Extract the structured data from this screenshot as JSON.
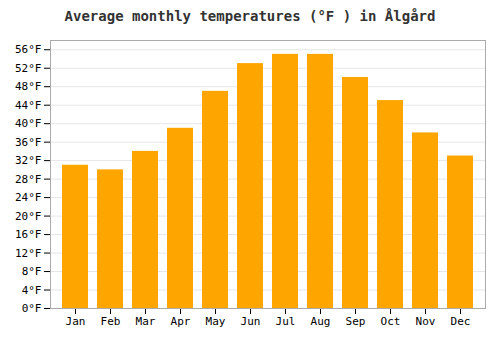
{
  "chart_data": {
    "type": "bar",
    "title": "Average monthly temperatures (°F ) in Ålgård",
    "categories": [
      "Jan",
      "Feb",
      "Mar",
      "Apr",
      "May",
      "Jun",
      "Jul",
      "Aug",
      "Sep",
      "Oct",
      "Nov",
      "Dec"
    ],
    "values": [
      31,
      30,
      34,
      39,
      47,
      53,
      55,
      55,
      50,
      45,
      38,
      33
    ],
    "color": "#FFA500",
    "ylim": [
      0,
      58
    ],
    "yticks": [
      {
        "value": 0,
        "label": "0°F"
      },
      {
        "value": 4,
        "label": "4°F"
      },
      {
        "value": 8,
        "label": "8°F"
      },
      {
        "value": 12,
        "label": "12°F"
      },
      {
        "value": 16,
        "label": "16°F"
      },
      {
        "value": 20,
        "label": "20°F"
      },
      {
        "value": 24,
        "label": "24°F"
      },
      {
        "value": 28,
        "label": "28°F"
      },
      {
        "value": 32,
        "label": "32°F"
      },
      {
        "value": 36,
        "label": "36°F"
      },
      {
        "value": 40,
        "label": "40°F"
      },
      {
        "value": 44,
        "label": "44°F"
      },
      {
        "value": 48,
        "label": "48°F"
      },
      {
        "value": 52,
        "label": "52°F"
      },
      {
        "value": 56,
        "label": "56°F"
      }
    ],
    "grid": true
  }
}
